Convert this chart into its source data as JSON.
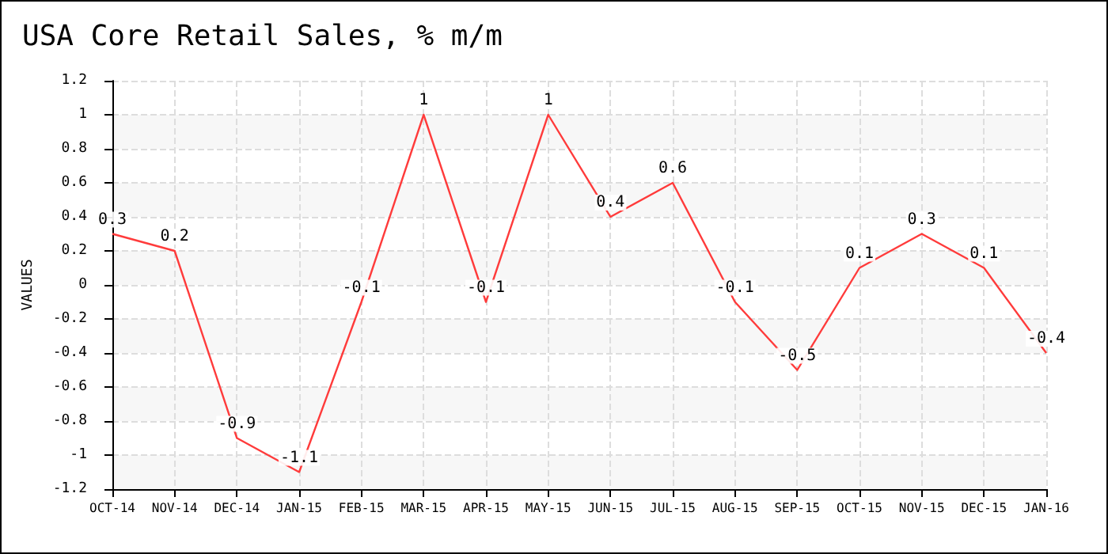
{
  "chart_data": {
    "type": "line",
    "title": "USA Core Retail Sales, % m/m",
    "ylabel": "VALUES",
    "categories": [
      "OCT-14",
      "NOV-14",
      "DEC-14",
      "JAN-15",
      "FEB-15",
      "MAR-15",
      "APR-15",
      "MAY-15",
      "JUN-15",
      "JUL-15",
      "AUG-15",
      "SEP-15",
      "OCT-15",
      "NOV-15",
      "DEC-15",
      "JAN-16"
    ],
    "series": [
      {
        "color": "#ff3b3b",
        "values": [
          0.3,
          0.2,
          -0.9,
          -1.1,
          -0.1,
          1,
          -0.1,
          1,
          0.4,
          0.6,
          -0.1,
          -0.5,
          0.1,
          0.3,
          0.1,
          -0.4
        ]
      }
    ],
    "ylim": [
      -1.2,
      1.2
    ],
    "yticks": [
      -1.2,
      -1,
      -0.8,
      -0.6,
      -0.4,
      -0.2,
      0,
      0.2,
      0.4,
      0.6,
      0.8,
      1,
      1.2
    ],
    "grid": true,
    "data_labels": true,
    "marker": "none",
    "line_style": "solid"
  }
}
